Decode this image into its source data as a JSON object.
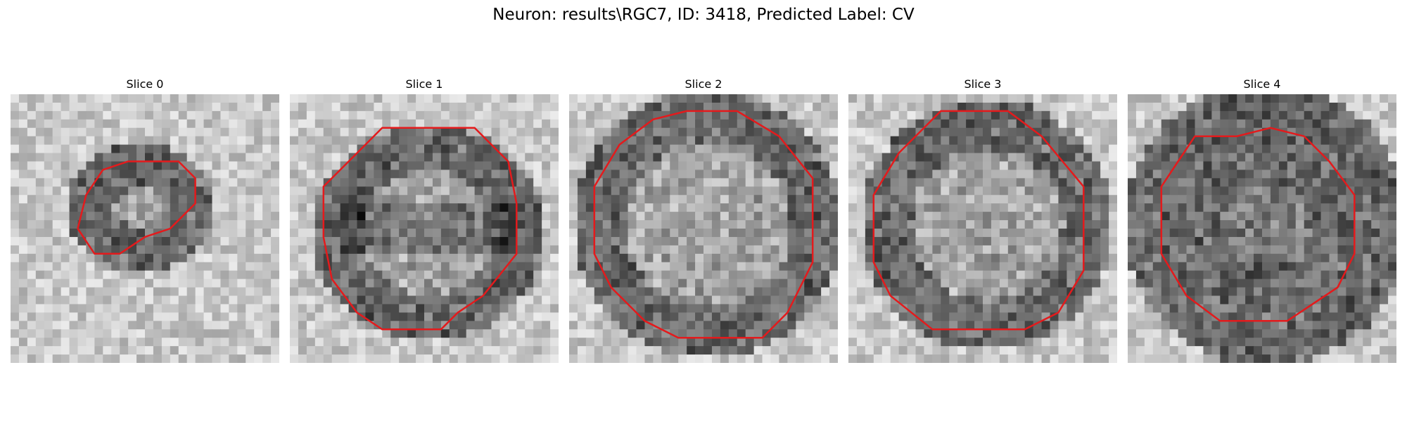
{
  "figure": {
    "title": "Neuron: results\\RGC7, ID: 3418, Predicted Label: CV",
    "contour_color": "#e41a1c",
    "colormap": "gray"
  },
  "panels": [
    {
      "title": "Slice 0",
      "seed": 11,
      "shape": "small-ellipse",
      "darkness": "moderate"
    },
    {
      "title": "Slice 1",
      "seed": 23,
      "shape": "octagon",
      "darkness": "dark-band"
    },
    {
      "title": "Slice 2",
      "seed": 37,
      "shape": "large-octagon",
      "darkness": "dark-rim"
    },
    {
      "title": "Slice 3",
      "seed": 53,
      "shape": "large-octagon",
      "darkness": "dark-rim"
    },
    {
      "title": "Slice 4",
      "seed": 71,
      "shape": "octagon",
      "darkness": "dark-fill"
    }
  ]
}
